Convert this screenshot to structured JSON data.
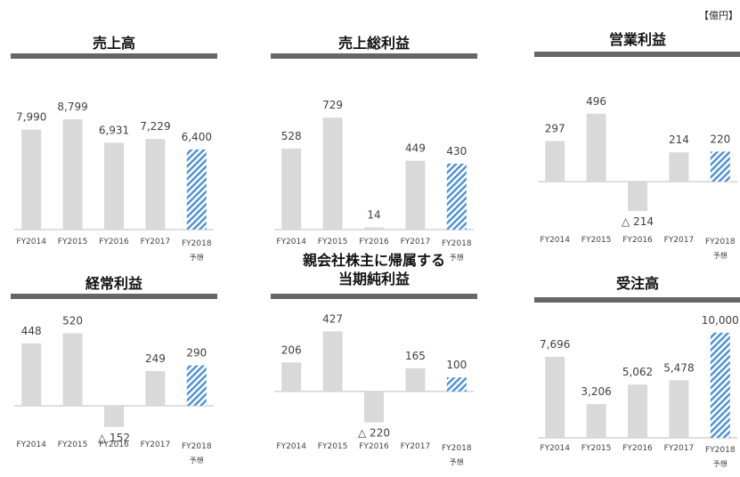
{
  "unit_label": "【億円】",
  "colors": {
    "bar": "#d9d9d9",
    "forecast_stripe": "#4a8fd6",
    "axis": "#bfbfbf",
    "title_rule": "#666666"
  },
  "chart_data": [
    {
      "type": "bar",
      "title": "売上高",
      "categories": [
        "FY2014",
        "FY2015",
        "FY2016",
        "FY2017",
        "FY2018"
      ],
      "forecast_note": "予想",
      "values": [
        7990,
        8799,
        6931,
        7229,
        6400
      ],
      "value_labels": [
        "7,990",
        "8,799",
        "6,931",
        "7,229",
        "6,400"
      ],
      "forecast_index": 4,
      "ylim": [
        0,
        9800
      ]
    },
    {
      "type": "bar",
      "title": "売上総利益",
      "categories": [
        "FY2014",
        "FY2015",
        "FY2016",
        "FY2017",
        "FY2018"
      ],
      "forecast_note": "予想",
      "values": [
        528,
        729,
        14,
        449,
        430
      ],
      "value_labels": [
        "528",
        "729",
        "14",
        "449",
        "430"
      ],
      "forecast_index": 4,
      "ylim": [
        0,
        800
      ]
    },
    {
      "type": "bar",
      "title": "営業利益",
      "categories": [
        "FY2014",
        "FY2015",
        "FY2016",
        "FY2017",
        "FY2018"
      ],
      "forecast_note": "予想",
      "values": [
        297,
        496,
        -214,
        214,
        220
      ],
      "value_labels": [
        "297",
        "496",
        "△ 214",
        "214",
        "220"
      ],
      "forecast_index": 4,
      "ylim": [
        -350,
        560
      ]
    },
    {
      "type": "bar",
      "title": "経常利益",
      "categories": [
        "FY2014",
        "FY2015",
        "FY2016",
        "FY2017",
        "FY2018"
      ],
      "forecast_note": "予想",
      "values": [
        448,
        520,
        -152,
        249,
        290
      ],
      "value_labels": [
        "448",
        "520",
        "△ 152",
        "249",
        "290"
      ],
      "forecast_index": 4,
      "ylim": [
        -230,
        600
      ]
    },
    {
      "type": "bar",
      "title": "親会社株主に帰属する\n当期純利益",
      "categories": [
        "FY2014",
        "FY2015",
        "FY2016",
        "FY2017",
        "FY2018"
      ],
      "forecast_note": "予想",
      "values": [
        206,
        427,
        -220,
        165,
        100
      ],
      "value_labels": [
        "206",
        "427",
        "△ 220",
        "165",
        "100"
      ],
      "forecast_index": 4,
      "ylim": [
        -330,
        480
      ]
    },
    {
      "type": "bar",
      "title": "受注高",
      "categories": [
        "FY2014",
        "FY2015",
        "FY2016",
        "FY2017",
        "FY2018"
      ],
      "forecast_note": "予想",
      "values": [
        7696,
        3206,
        5062,
        5478,
        10000
      ],
      "value_labels": [
        "7,696",
        "3,206",
        "5,062",
        "5,478",
        "10,000"
      ],
      "forecast_index": 4,
      "ylim": [
        0,
        11000
      ]
    }
  ]
}
